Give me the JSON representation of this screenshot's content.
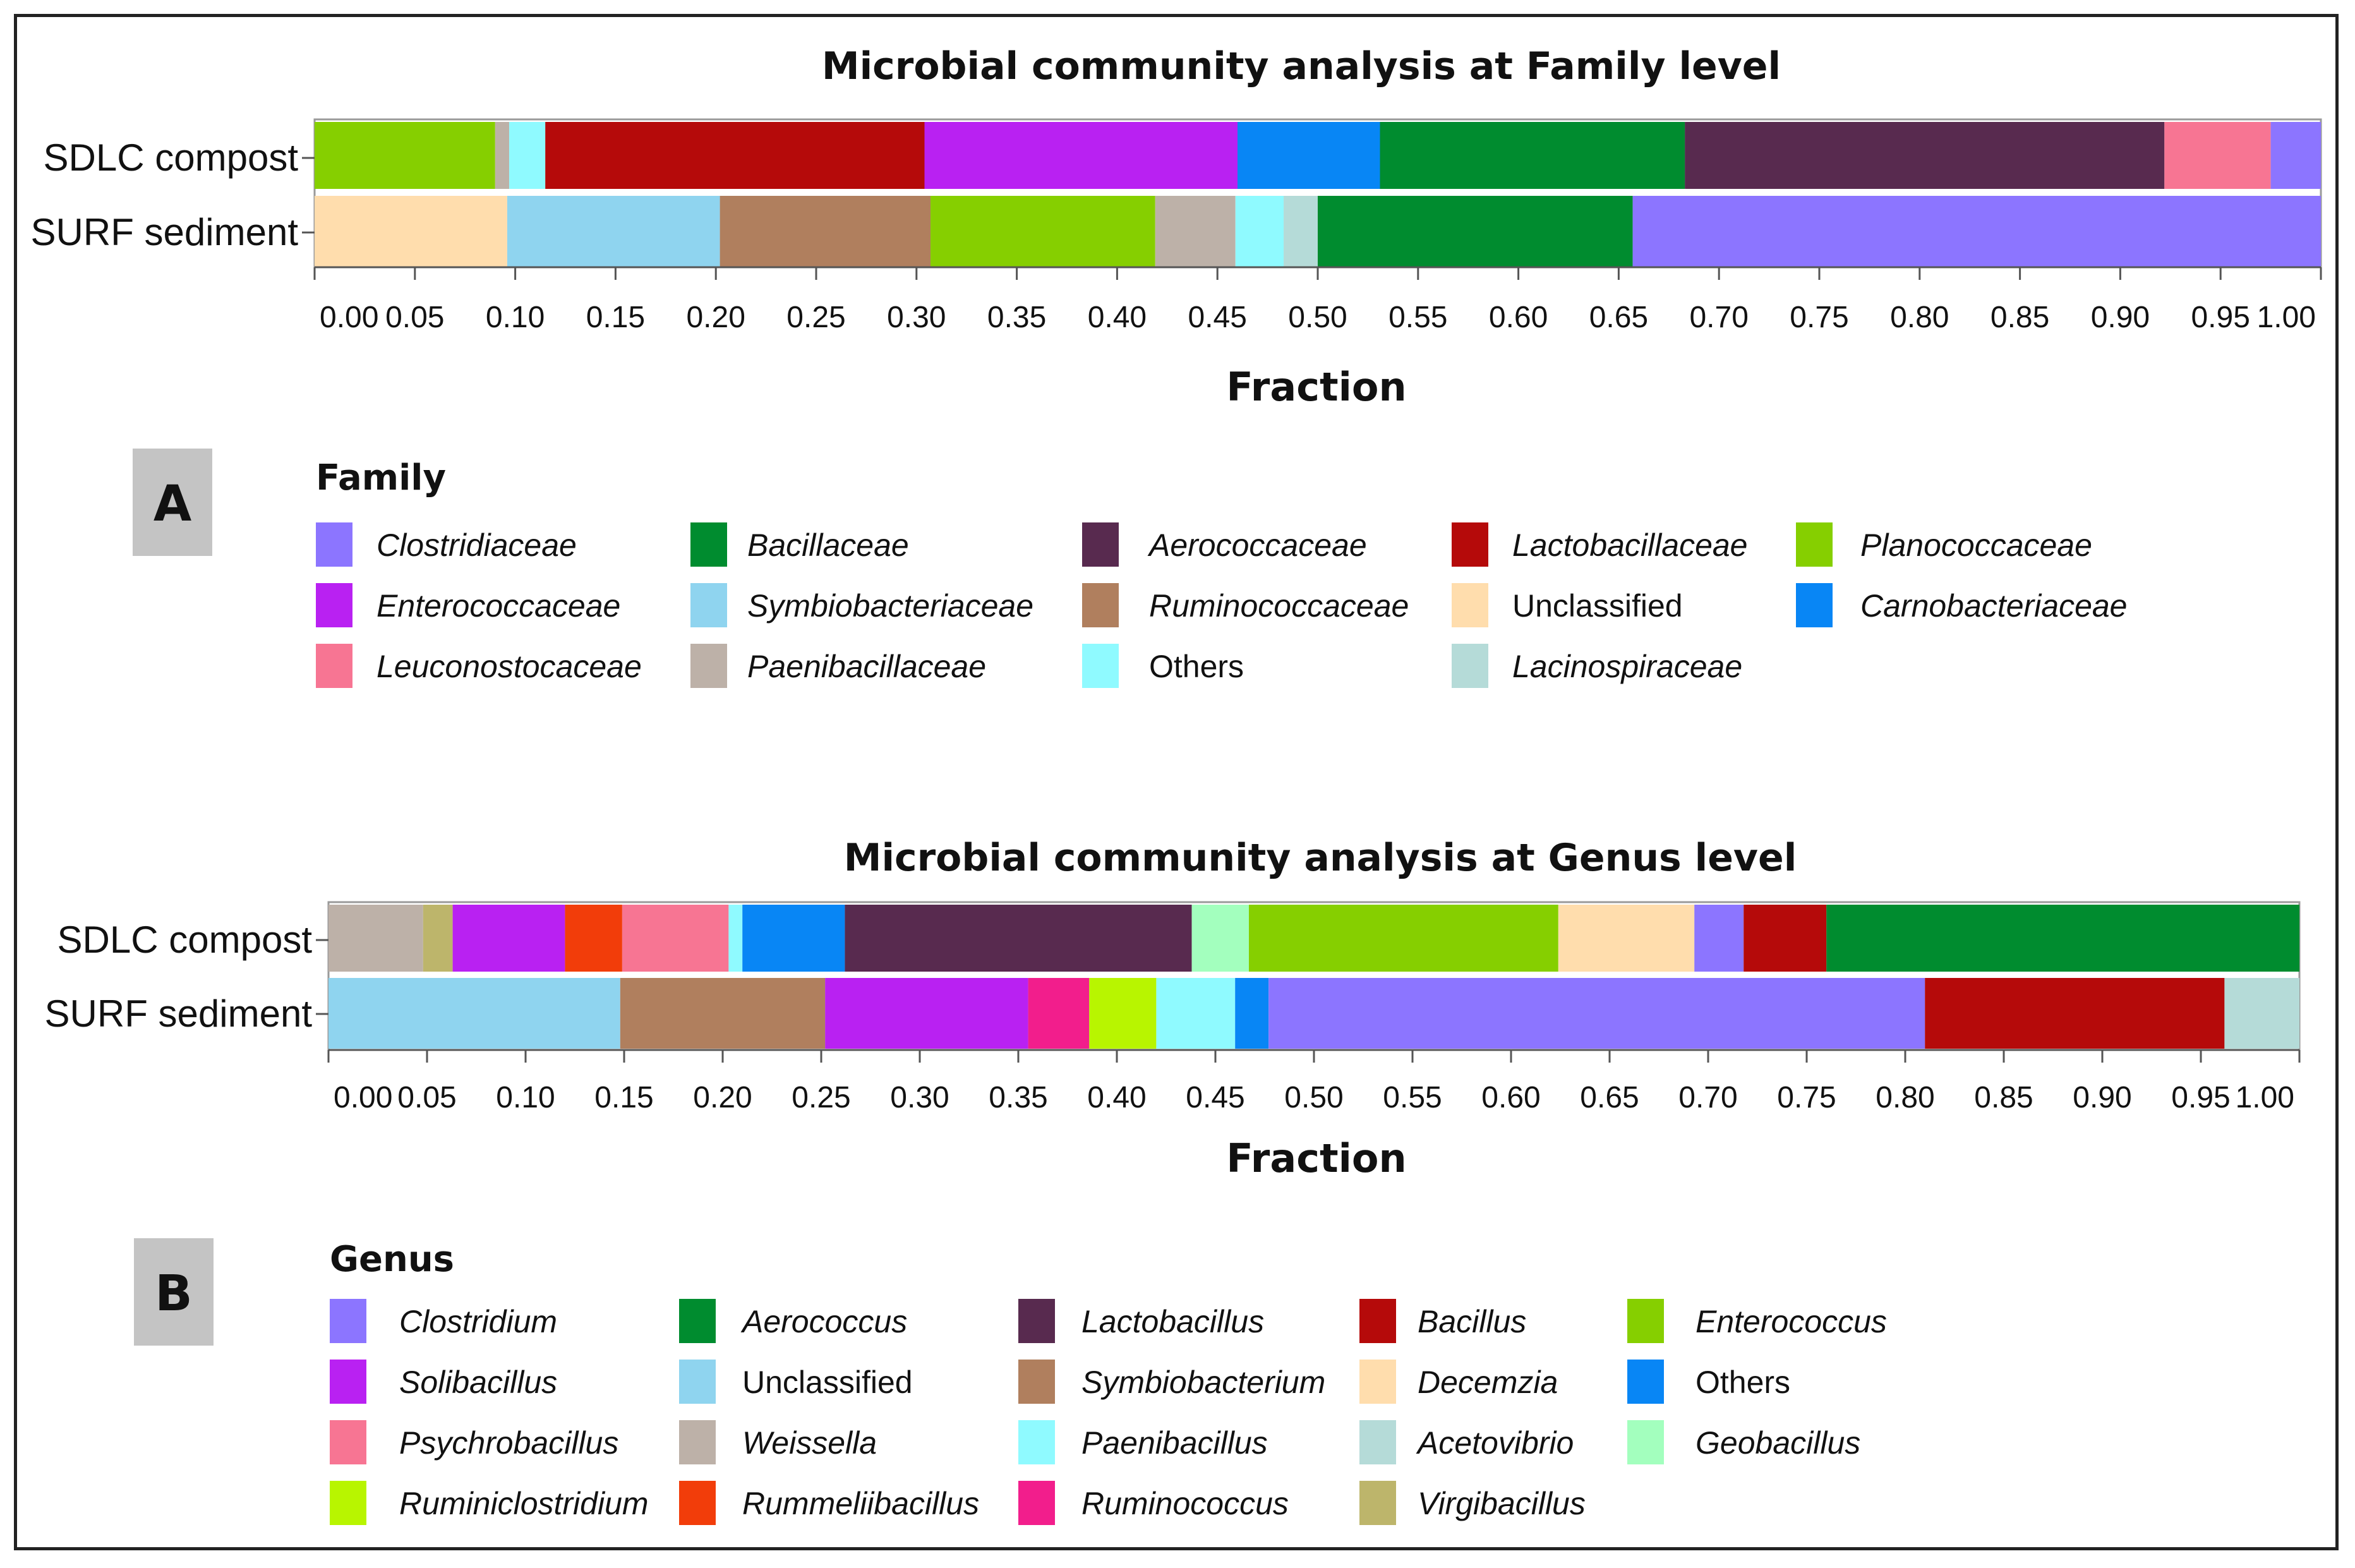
{
  "chart_data": [
    {
      "type": "bar",
      "orientation": "horizontal",
      "stacked": true,
      "panel_label": "A",
      "title": "Microbial community analysis at Family level",
      "xlabel": "Fraction",
      "ylabel": "",
      "xlim": [
        0,
        1
      ],
      "xticks": [
        "0.00",
        "0.05",
        "0.10",
        "0.15",
        "0.20",
        "0.25",
        "0.30",
        "0.35",
        "0.40",
        "0.45",
        "0.50",
        "0.55",
        "0.60",
        "0.65",
        "0.70",
        "0.75",
        "0.80",
        "0.85",
        "0.90",
        "0.95",
        "1.00"
      ],
      "categories": [
        "SDLC compost",
        "SURF sediment"
      ],
      "legend_title": "Family",
      "legend": [
        {
          "name": "Clostridiaceae",
          "color": "#8C75FF",
          "italic": true
        },
        {
          "name": "Bacillaceae",
          "color": "#008C2F",
          "italic": true
        },
        {
          "name": "Aerococcaceae",
          "color": "#582A4F",
          "italic": true
        },
        {
          "name": "Lactobacillaceae",
          "color": "#B50A0A",
          "italic": true
        },
        {
          "name": "Planococcaceae",
          "color": "#86CF00",
          "italic": true
        },
        {
          "name": "Enterococcaceae",
          "color": "#B921F2",
          "italic": true
        },
        {
          "name": "Symbiobacteriaceae",
          "color": "#8FD4EF",
          "italic": true
        },
        {
          "name": "Ruminococcaceae",
          "color": "#B07F5E",
          "italic": true
        },
        {
          "name": "Unclassified",
          "color": "#FFDDAD",
          "italic": false
        },
        {
          "name": "Carnobacteriaceae",
          "color": "#0886F5",
          "italic": true
        },
        {
          "name": "Leuconostocaceae",
          "color": "#F77593",
          "italic": true
        },
        {
          "name": "Paenibacillaceae",
          "color": "#BDB1A8",
          "italic": true
        },
        {
          "name": "Others",
          "color": "#8FFAFF",
          "italic": false
        },
        {
          "name": "Lacinospiraceae",
          "color": "#B5DBD8",
          "italic": true
        }
      ],
      "series": [
        {
          "name": "SDLC compost",
          "segments": [
            {
              "name": "Planococcaceae",
              "value": 0.09,
              "color": "#86CF00"
            },
            {
              "name": "Paenibacillaceae",
              "value": 0.007,
              "color": "#BDB1A8"
            },
            {
              "name": "Others",
              "value": 0.018,
              "color": "#8FFAFF"
            },
            {
              "name": "Lactobacillaceae",
              "value": 0.189,
              "color": "#B50A0A"
            },
            {
              "name": "Enterococcaceae",
              "value": 0.156,
              "color": "#B921F2"
            },
            {
              "name": "Carnobacteriaceae",
              "value": 0.071,
              "color": "#0886F5"
            },
            {
              "name": "Bacillaceae",
              "value": 0.152,
              "color": "#008C2F"
            },
            {
              "name": "Aerococcaceae",
              "value": 0.239,
              "color": "#582A4F"
            },
            {
              "name": "Leuconostocaceae",
              "value": 0.053,
              "color": "#F77593"
            },
            {
              "name": "Clostridiaceae",
              "value": 0.025,
              "color": "#8C75FF"
            }
          ]
        },
        {
          "name": "SURF sediment",
          "segments": [
            {
              "name": "Unclassified",
              "value": 0.096,
              "color": "#FFDDAD"
            },
            {
              "name": "Symbiobacteriaceae",
              "value": 0.106,
              "color": "#8FD4EF"
            },
            {
              "name": "Ruminococcaceae",
              "value": 0.105,
              "color": "#B07F5E"
            },
            {
              "name": "Planococcaceae",
              "value": 0.112,
              "color": "#86CF00"
            },
            {
              "name": "Paenibacillaceae",
              "value": 0.04,
              "color": "#BDB1A8"
            },
            {
              "name": "Others",
              "value": 0.024,
              "color": "#8FFAFF"
            },
            {
              "name": "Lacinospiraceae",
              "value": 0.017,
              "color": "#B5DBD8"
            },
            {
              "name": "Bacillaceae",
              "value": 0.157,
              "color": "#008C2F"
            },
            {
              "name": "Clostridiaceae",
              "value": 0.343,
              "color": "#8C75FF"
            }
          ]
        }
      ]
    },
    {
      "type": "bar",
      "orientation": "horizontal",
      "stacked": true,
      "panel_label": "B",
      "title": "Microbial community analysis at Genus level",
      "xlabel": "Fraction",
      "ylabel": "",
      "xlim": [
        0,
        1
      ],
      "xticks": [
        "0.00",
        "0.05",
        "0.10",
        "0.15",
        "0.20",
        "0.25",
        "0.30",
        "0.35",
        "0.40",
        "0.45",
        "0.50",
        "0.55",
        "0.60",
        "0.65",
        "0.70",
        "0.75",
        "0.80",
        "0.85",
        "0.90",
        "0.95",
        "1.00"
      ],
      "categories": [
        "SDLC compost",
        "SURF sediment"
      ],
      "legend_title": "Genus",
      "legend": [
        {
          "name": "Clostridium",
          "color": "#8C75FF",
          "italic": true
        },
        {
          "name": "Aerococcus",
          "color": "#008C2F",
          "italic": true
        },
        {
          "name": "Lactobacillus",
          "color": "#582A4F",
          "italic": true
        },
        {
          "name": "Bacillus",
          "color": "#B50A0A",
          "italic": true
        },
        {
          "name": "Enterococcus",
          "color": "#86CF00",
          "italic": true
        },
        {
          "name": "Solibacillus",
          "color": "#B921F2",
          "italic": true
        },
        {
          "name": "Unclassified",
          "color": "#8FD4EF",
          "italic": false
        },
        {
          "name": "Symbiobacterium",
          "color": "#B07F5E",
          "italic": true
        },
        {
          "name": "Decemzia",
          "color": "#FFDDAD",
          "italic": true
        },
        {
          "name": "Others",
          "color": "#0886F5",
          "italic": false
        },
        {
          "name": "Psychrobacillus",
          "color": "#F77593",
          "italic": true
        },
        {
          "name": "Weissella",
          "color": "#BDB1A8",
          "italic": true
        },
        {
          "name": "Paenibacillus",
          "color": "#8FFAFF",
          "italic": true
        },
        {
          "name": "Acetovibrio",
          "color": "#B5DBD8",
          "italic": true
        },
        {
          "name": "Geobacillus",
          "color": "#A3FFBE",
          "italic": true
        },
        {
          "name": "Ruminiclostridium",
          "color": "#B8F500",
          "italic": true
        },
        {
          "name": "Rummeliibacillus",
          "color": "#F23D0A",
          "italic": true
        },
        {
          "name": "Ruminococcus",
          "color": "#F21E8C",
          "italic": true
        },
        {
          "name": "Virgibacillus",
          "color": "#BDB56B",
          "italic": true
        }
      ],
      "series": [
        {
          "name": "SDLC compost",
          "segments": [
            {
              "name": "Weissella",
              "value": 0.048,
              "color": "#BDB1A8"
            },
            {
              "name": "Virgibacillus",
              "value": 0.015,
              "color": "#BDB56B"
            },
            {
              "name": "Solibacillus",
              "value": 0.057,
              "color": "#B921F2"
            },
            {
              "name": "Rummeliibacillus",
              "value": 0.029,
              "color": "#F23D0A"
            },
            {
              "name": "Psychrobacillus",
              "value": 0.054,
              "color": "#F77593"
            },
            {
              "name": "Paenibacillus",
              "value": 0.007,
              "color": "#8FFAFF"
            },
            {
              "name": "Others",
              "value": 0.052,
              "color": "#0886F5"
            },
            {
              "name": "Lactobacillus",
              "value": 0.176,
              "color": "#582A4F"
            },
            {
              "name": "Geobacillus",
              "value": 0.029,
              "color": "#A3FFBE"
            },
            {
              "name": "Enterococcus",
              "value": 0.157,
              "color": "#86CF00"
            },
            {
              "name": "Decemzia",
              "value": 0.069,
              "color": "#FFDDAD"
            },
            {
              "name": "Clostridium",
              "value": 0.025,
              "color": "#8C75FF"
            },
            {
              "name": "Bacillus",
              "value": 0.042,
              "color": "#B50A0A"
            },
            {
              "name": "Aerococcus",
              "value": 0.24,
              "color": "#008C2F"
            }
          ]
        },
        {
          "name": "SURF sediment",
          "segments": [
            {
              "name": "Unclassified",
              "value": 0.148,
              "color": "#8FD4EF"
            },
            {
              "name": "Symbiobacterium",
              "value": 0.104,
              "color": "#B07F5E"
            },
            {
              "name": "Solibacillus",
              "value": 0.103,
              "color": "#B921F2"
            },
            {
              "name": "Ruminococcus",
              "value": 0.031,
              "color": "#F21E8C"
            },
            {
              "name": "Ruminiclostridium",
              "value": 0.034,
              "color": "#B8F500"
            },
            {
              "name": "Paenibacillus",
              "value": 0.04,
              "color": "#8FFAFF"
            },
            {
              "name": "Others",
              "value": 0.017,
              "color": "#0886F5"
            },
            {
              "name": "Clostridium",
              "value": 0.333,
              "color": "#8C75FF"
            },
            {
              "name": "Bacillus",
              "value": 0.152,
              "color": "#B50A0A"
            },
            {
              "name": "Acetovibrio",
              "value": 0.038,
              "color": "#B5DBD8"
            }
          ]
        }
      ]
    }
  ]
}
